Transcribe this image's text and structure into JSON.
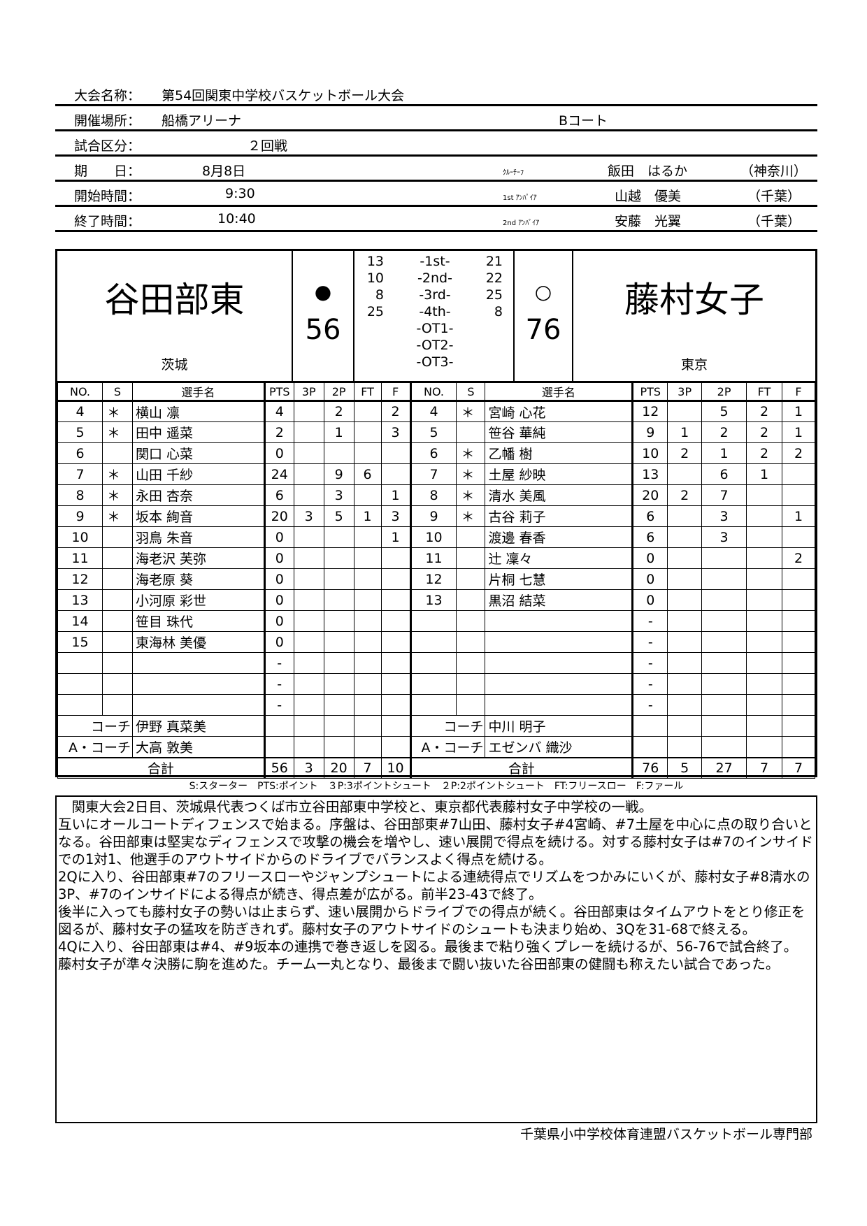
{
  "info": {
    "tournament_label": "大会名称：",
    "tournament": "第54回関東中学校バスケットボール大会",
    "venue_label": "開催場所：",
    "venue": "船橋アリーナ",
    "court": "Bコート",
    "round_label": "試合区分：",
    "round": "２回戦",
    "date_label": "期　　日：",
    "date": "8月8日",
    "start_label": "開始時間：",
    "start": "9:30",
    "end_label": "終了時間：",
    "end": "10:40",
    "officials": [
      {
        "role": "ｸﾙｰﾁｰﾌ",
        "name": "飯田　はるか",
        "pref": "（神奈川）"
      },
      {
        "role": "1st ｱﾝﾊﾟｲｱ",
        "name": "山越　優美",
        "pref": "（千葉）"
      },
      {
        "role": "2nd ｱﾝﾊﾟｲｱ",
        "name": "安藤　光翼",
        "pref": "（千葉）"
      }
    ]
  },
  "scoreboard": {
    "home": {
      "name": "谷田部東",
      "pref": "茨城",
      "mark": "●",
      "score": "56"
    },
    "away": {
      "name": "藤村女子",
      "pref": "東京",
      "mark": "○",
      "score": "76"
    },
    "periods": [
      {
        "label": "-1st-",
        "home": "13",
        "away": "21"
      },
      {
        "label": "-2nd-",
        "home": "10",
        "away": "22"
      },
      {
        "label": "-3rd-",
        "home": "8",
        "away": "25"
      },
      {
        "label": "-4th-",
        "home": "25",
        "away": "8"
      },
      {
        "label": "-OT1-",
        "home": "",
        "away": ""
      },
      {
        "label": "-OT2-",
        "home": "",
        "away": ""
      },
      {
        "label": "-OT3-",
        "home": "",
        "away": ""
      }
    ]
  },
  "columns": [
    "NO.",
    "S",
    "選手名",
    "PTS",
    "3P",
    "2P",
    "FT",
    "F"
  ],
  "home_players": [
    [
      "4",
      "＊",
      "横山 凛",
      "4",
      "",
      "2",
      "",
      "2"
    ],
    [
      "5",
      "＊",
      "田中 遥菜",
      "2",
      "",
      "1",
      "",
      "3"
    ],
    [
      "6",
      "",
      "関口 心菜",
      "0",
      "",
      "",
      "",
      ""
    ],
    [
      "7",
      "＊",
      "山田 千紗",
      "24",
      "",
      "9",
      "6",
      ""
    ],
    [
      "8",
      "＊",
      "永田 杏奈",
      "6",
      "",
      "3",
      "",
      "1"
    ],
    [
      "9",
      "＊",
      "坂本 絢音",
      "20",
      "3",
      "5",
      "1",
      "3"
    ],
    [
      "10",
      "",
      "羽鳥 朱音",
      "0",
      "",
      "",
      "",
      "1"
    ],
    [
      "11",
      "",
      "海老沢 芙弥",
      "0",
      "",
      "",
      "",
      ""
    ],
    [
      "12",
      "",
      "海老原 葵",
      "0",
      "",
      "",
      "",
      ""
    ],
    [
      "13",
      "",
      "小河原 彩世",
      "0",
      "",
      "",
      "",
      ""
    ],
    [
      "14",
      "",
      "笹目 珠代",
      "0",
      "",
      "",
      "",
      ""
    ],
    [
      "15",
      "",
      "東海林 美優",
      "0",
      "",
      "",
      "",
      ""
    ],
    [
      "",
      "",
      "",
      "-",
      "",
      "",
      "",
      ""
    ],
    [
      "",
      "",
      "",
      "-",
      "",
      "",
      "",
      ""
    ],
    [
      "",
      "",
      "",
      "-",
      "",
      "",
      "",
      ""
    ]
  ],
  "away_players": [
    [
      "4",
      "＊",
      "宮崎 心花",
      "12",
      "",
      "5",
      "2",
      "1"
    ],
    [
      "5",
      "",
      "笹谷 華純",
      "9",
      "1",
      "2",
      "2",
      "1"
    ],
    [
      "6",
      "＊",
      "乙幡 樹",
      "10",
      "2",
      "1",
      "2",
      "2"
    ],
    [
      "7",
      "＊",
      "土屋 紗映",
      "13",
      "",
      "6",
      "1",
      ""
    ],
    [
      "8",
      "＊",
      "清水 美風",
      "20",
      "2",
      "7",
      "",
      ""
    ],
    [
      "9",
      "＊",
      "古谷 莉子",
      "6",
      "",
      "3",
      "",
      "1"
    ],
    [
      "10",
      "",
      "渡邊 春香",
      "6",
      "",
      "3",
      "",
      ""
    ],
    [
      "11",
      "",
      "辻 凜々",
      "0",
      "",
      "",
      "",
      "2"
    ],
    [
      "12",
      "",
      "片桐 七慧",
      "0",
      "",
      "",
      "",
      ""
    ],
    [
      "13",
      "",
      "黒沼 結菜",
      "0",
      "",
      "",
      "",
      ""
    ],
    [
      "",
      "",
      "",
      "-",
      "",
      "",
      "",
      ""
    ],
    [
      "",
      "",
      "",
      "-",
      "",
      "",
      "",
      ""
    ],
    [
      "",
      "",
      "",
      "-",
      "",
      "",
      "",
      ""
    ],
    [
      "",
      "",
      "",
      "-",
      "",
      "",
      "",
      ""
    ],
    [
      "",
      "",
      "",
      "-",
      "",
      "",
      "",
      ""
    ]
  ],
  "staff": {
    "coach_label": "コーチ",
    "asst_label": "A・コーチ",
    "home_coach": "伊野 真菜美",
    "home_asst": "大高 敦美",
    "away_coach": "中川 明子",
    "away_asst": "エゼンバ 織沙"
  },
  "totals": {
    "label": "合計",
    "home": [
      "56",
      "3",
      "20",
      "7",
      "10"
    ],
    "away": [
      "76",
      "5",
      "27",
      "7",
      "7"
    ]
  },
  "legend": "S:スターター　PTS:ポイント　３P:3ポイントシュート　２P:2ポイントシュート　FT:フリースロー　F:ファール",
  "narrative": [
    "　関東大会2日目、茨城県代表つくば市立谷田部東中学校と、東京都代表藤村女子中学校の一戦。",
    "互いにオールコートディフェンスで始まる。序盤は、谷田部東#7山田、藤村女子#4宮崎、#7土屋を中心に点の取り合いとなる。谷田部東は堅実なディフェンスで攻撃の機会を増やし、速い展開で得点を続ける。対する藤村女子は#7のインサイドでの1対1、他選手のアウトサイドからのドライブでバランスよく得点を続ける。",
    "2Qに入り、谷田部東#7のフリースローやジャンプシュートによる連続得点でリズムをつかみにいくが、藤村女子#8清水の3P、#7のインサイドによる得点が続き、得点差が広がる。前半23-43で終了。",
    "後半に入っても藤村女子の勢いは止まらず、速い展開からドライブでの得点が続く。谷田部東はタイムアウトをとり修正を図るが、藤村女子の猛攻を防ぎきれず。藤村女子のアウトサイドのシュートも決まり始め、3Qを31-68で終える。",
    "4Qに入り、谷田部東は#4、#9坂本の連携で巻き返しを図る。最後まで粘り強くプレーを続けるが、56-76で試合終了。",
    "藤村女子が準々決勝に駒を進めた。チーム一丸となり、最後まで闘い抜いた谷田部東の健闘も称えたい試合であった。"
  ],
  "footer": "千葉県小中学校体育連盟バスケットボール専門部"
}
